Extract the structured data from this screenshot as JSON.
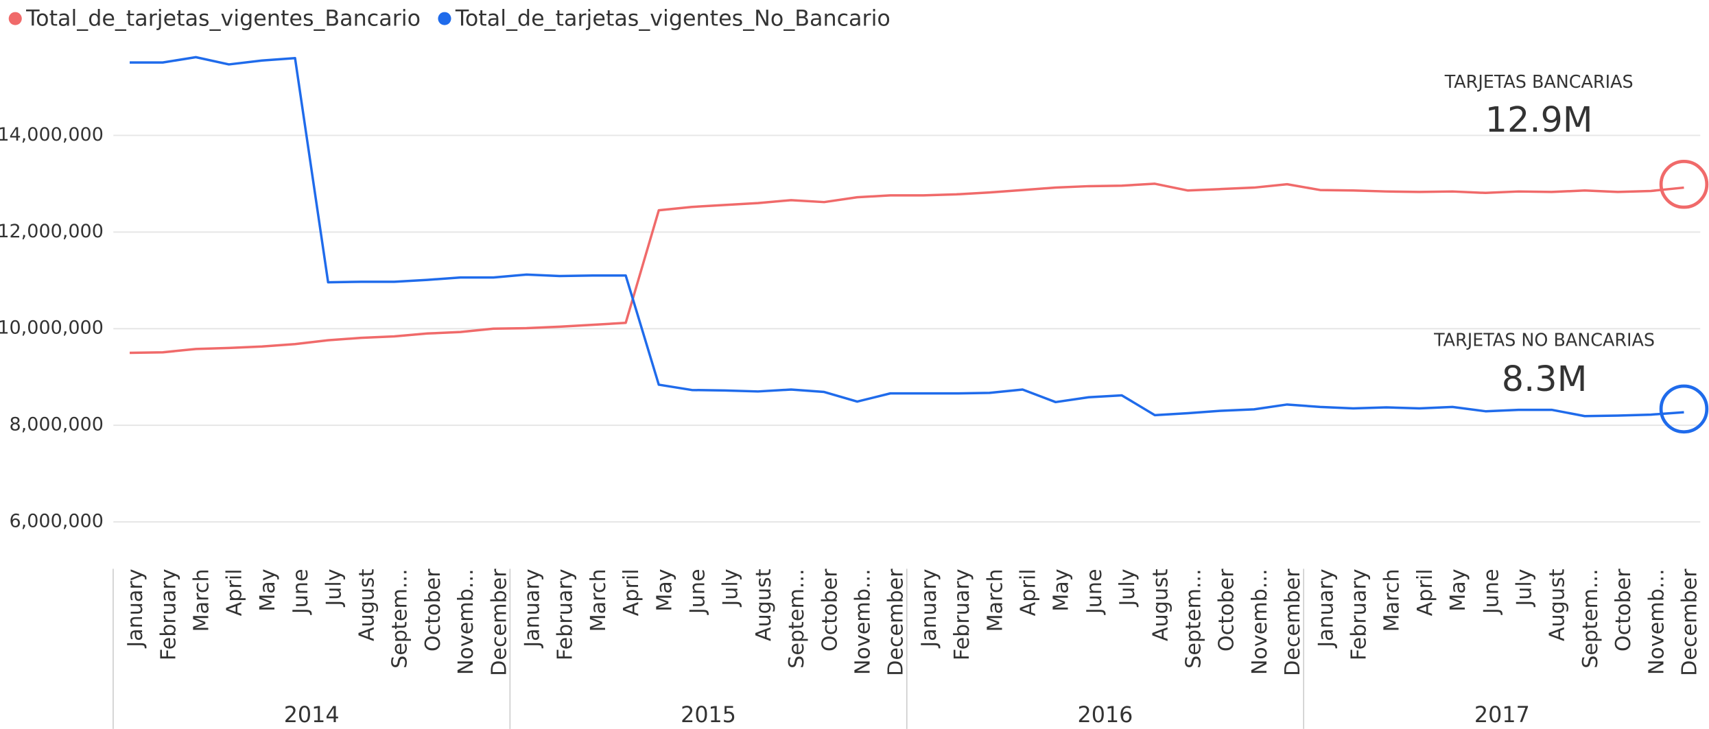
{
  "chart_data": {
    "type": "line",
    "categories": [
      "January",
      "February",
      "March",
      "April",
      "May",
      "June",
      "July",
      "August",
      "Septem...",
      "October",
      "Novemb...",
      "December",
      "January",
      "February",
      "March",
      "April",
      "May",
      "June",
      "July",
      "August",
      "Septem...",
      "October",
      "Novemb...",
      "December",
      "January",
      "February",
      "March",
      "April",
      "May",
      "June",
      "July",
      "August",
      "Septem...",
      "October",
      "Novemb...",
      "December",
      "January",
      "February",
      "March",
      "April",
      "May",
      "June",
      "July",
      "August",
      "Septem...",
      "October",
      "Novemb...",
      "December"
    ],
    "years": [
      "2014",
      "2015",
      "2016",
      "2017"
    ],
    "series": [
      {
        "name": "Total_de_tarjetas_vigentes_Bancario",
        "color": "#F06A6A",
        "values": [
          9500000,
          9510000,
          9580000,
          9600000,
          9630000,
          9680000,
          9760000,
          9810000,
          9840000,
          9900000,
          9930000,
          10000000,
          10010000,
          10040000,
          10080000,
          10120000,
          12450000,
          12520000,
          12560000,
          12600000,
          12660000,
          12620000,
          12720000,
          12760000,
          12760000,
          12780000,
          12820000,
          12870000,
          12920000,
          12950000,
          12960000,
          13000000,
          12860000,
          12890000,
          12920000,
          12990000,
          12870000,
          12860000,
          12840000,
          12830000,
          12840000,
          12810000,
          12840000,
          12830000,
          12860000,
          12830000,
          12850000,
          12920000
        ]
      },
      {
        "name": "Total_de_tarjetas_vigentes_No_Bancario",
        "color": "#1F6BEB",
        "values": [
          15510000,
          15510000,
          15620000,
          15470000,
          15550000,
          15600000,
          10960000,
          10970000,
          10970000,
          11010000,
          11060000,
          11060000,
          11120000,
          11090000,
          11100000,
          11100000,
          8840000,
          8730000,
          8720000,
          8700000,
          8740000,
          8690000,
          8490000,
          8660000,
          8660000,
          8660000,
          8670000,
          8740000,
          8480000,
          8580000,
          8620000,
          8210000,
          8250000,
          8300000,
          8330000,
          8430000,
          8380000,
          8350000,
          8370000,
          8350000,
          8380000,
          8290000,
          8320000,
          8320000,
          8190000,
          8200000,
          8220000,
          8270000
        ]
      }
    ],
    "ylim": [
      5300000,
      15900000
    ],
    "yticks": [
      {
        "value": 6000000,
        "label": "6,000,000"
      },
      {
        "value": 8000000,
        "label": "8,000,000"
      },
      {
        "value": 10000000,
        "label": "10,000,000"
      },
      {
        "value": 12000000,
        "label": "12,000,000"
      },
      {
        "value": 14000000,
        "label": "14,000,000"
      }
    ],
    "grid": true,
    "annotations": [
      {
        "label": "TARJETAS BANCARIAS",
        "value_label": "12.9M"
      },
      {
        "label": "TARJETAS NO BANCARIAS",
        "value_label": "8.3M"
      }
    ]
  }
}
